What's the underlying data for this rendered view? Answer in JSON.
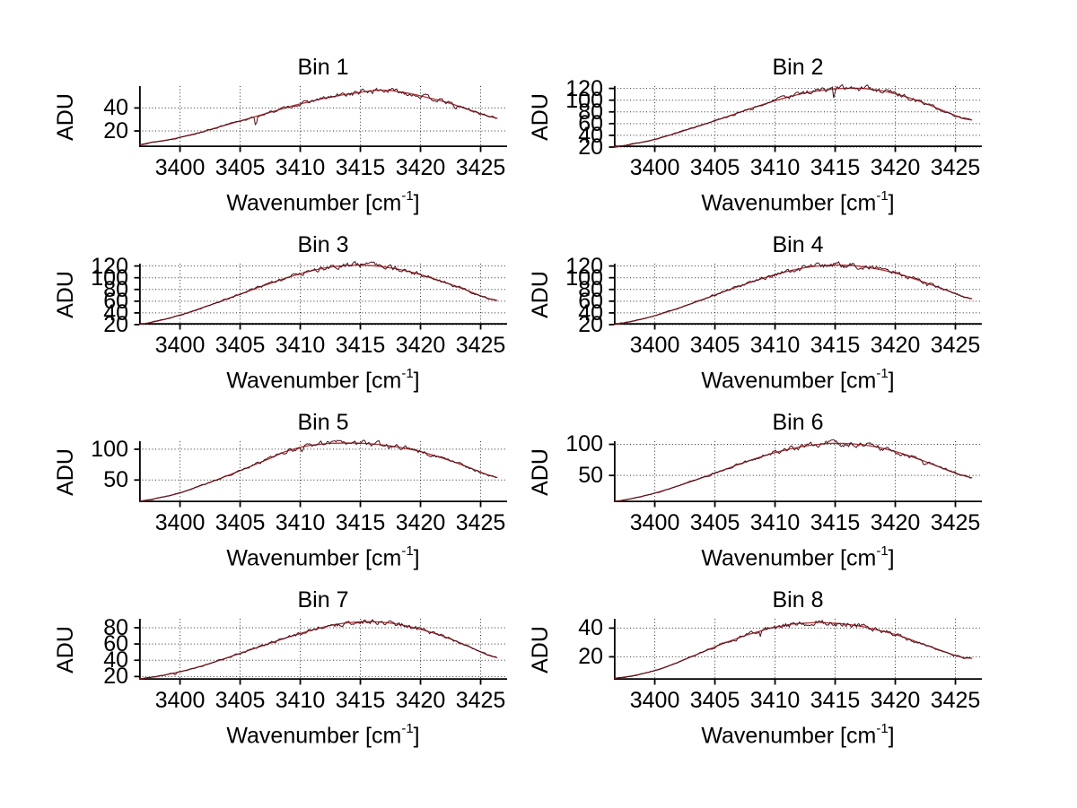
{
  "figure": {
    "background": "#ffffff",
    "ylabel": "ADU",
    "xlabel_base": "Wavenumber [cm",
    "xlabel_sup": "-1",
    "xlabel_close": "]",
    "colors": {
      "axis": "#000000",
      "grid": "#2e2e2e",
      "text": "#000000",
      "fit_line": "#b03232",
      "data_line": "#4d0f1c"
    }
  },
  "chart_data": [
    {
      "type": "line",
      "title": "Bin 1",
      "xlabel": "Wavenumber [cm^-1]",
      "ylabel": "ADU",
      "xlim": [
        3396.6,
        3427.2
      ],
      "xticks": [
        3400,
        3405,
        3410,
        3415,
        3420,
        3425
      ],
      "ylim": [
        6,
        59
      ],
      "yticks": [
        20,
        40
      ],
      "grid": true,
      "legend": "none",
      "x_start": 3396.6,
      "x_step": 1,
      "values": [
        8,
        10,
        11.5,
        13.5,
        16,
        18.5,
        21.5,
        24.5,
        27.5,
        30.5,
        33.5,
        36.5,
        39.5,
        42.5,
        45,
        47.5,
        49.5,
        51.5,
        53,
        54.5,
        55.5,
        55,
        53.5,
        51.5,
        49,
        46.5,
        43.5,
        40,
        36.5,
        33
      ],
      "x_end": 3426.4,
      "y_end": 31,
      "dips": [
        {
          "x": 3406.3,
          "depth": 9,
          "width": 0.1
        },
        {
          "x": 3422.9,
          "depth": 3.5,
          "width": 0.12
        }
      ],
      "noise_amp": 0.9,
      "seed": 13
    },
    {
      "type": "line",
      "title": "Bin 2",
      "xlabel": "Wavenumber [cm^-1]",
      "ylabel": "ADU",
      "xlim": [
        3396.6,
        3427.2
      ],
      "xticks": [
        3400,
        3405,
        3410,
        3415,
        3420,
        3425
      ],
      "ylim": [
        20,
        124
      ],
      "yticks": [
        20,
        40,
        60,
        80,
        100,
        120
      ],
      "grid": true,
      "legend": "none",
      "x_start": 3396.6,
      "x_step": 1,
      "values": [
        20,
        23,
        27,
        31,
        36.5,
        42.5,
        49,
        55.5,
        62,
        69,
        76,
        83,
        90,
        96.5,
        102.5,
        108,
        112.5,
        116,
        118.5,
        120,
        120.5,
        119.5,
        117,
        113,
        107.5,
        101,
        93.5,
        85.5,
        77,
        69
      ],
      "x_end": 3426.4,
      "y_end": 66,
      "dips": [
        {
          "x": 3414.9,
          "depth": 21,
          "width": 0.07
        },
        {
          "x": 3406.0,
          "depth": 3,
          "width": 0.1
        }
      ],
      "noise_amp": 1.8,
      "seed": 90
    },
    {
      "type": "line",
      "title": "Bin 3",
      "xlabel": "Wavenumber [cm^-1]",
      "ylabel": "ADU",
      "xlim": [
        3396.6,
        3427.2
      ],
      "xticks": [
        3400,
        3405,
        3410,
        3415,
        3420,
        3425
      ],
      "ylim": [
        20,
        124
      ],
      "yticks": [
        20,
        40,
        60,
        80,
        100,
        120
      ],
      "grid": true,
      "legend": "none",
      "x_start": 3396.6,
      "x_step": 1,
      "values": [
        20,
        24,
        28.5,
        34,
        40,
        47,
        54,
        61.5,
        69,
        76.5,
        84,
        91,
        98,
        104.5,
        110,
        115,
        118.5,
        120.5,
        121.5,
        121,
        119.5,
        116.5,
        112.5,
        107.5,
        101.5,
        95,
        88,
        80.5,
        72.5,
        65
      ],
      "x_end": 3426.4,
      "y_end": 61,
      "dips": [
        {
          "x": 3409.7,
          "depth": 4,
          "width": 0.1
        }
      ],
      "noise_amp": 1.8,
      "seed": 167
    },
    {
      "type": "line",
      "title": "Bin 4",
      "xlabel": "Wavenumber [cm^-1]",
      "ylabel": "ADU",
      "xlim": [
        3396.6,
        3427.2
      ],
      "xticks": [
        3400,
        3405,
        3410,
        3415,
        3420,
        3425
      ],
      "ylim": [
        20,
        124
      ],
      "yticks": [
        20,
        40,
        60,
        80,
        100,
        120
      ],
      "grid": true,
      "legend": "none",
      "x_start": 3396.6,
      "x_step": 1,
      "values": [
        20,
        23.5,
        28,
        33,
        39,
        45.5,
        52.5,
        60,
        67.5,
        75,
        82.5,
        89.5,
        96.5,
        103,
        108.5,
        113.5,
        117.5,
        120,
        121.5,
        121.5,
        120.5,
        118,
        114.5,
        110,
        104.5,
        98,
        91,
        83.5,
        76,
        68
      ],
      "x_end": 3426.4,
      "y_end": 64,
      "dips": [
        {
          "x": 3422.6,
          "depth": 4,
          "width": 0.1
        }
      ],
      "noise_amp": 1.8,
      "seed": 244
    },
    {
      "type": "line",
      "title": "Bin 5",
      "xlabel": "Wavenumber [cm^-1]",
      "ylabel": "ADU",
      "xlim": [
        3396.6,
        3427.2
      ],
      "xticks": [
        3400,
        3405,
        3410,
        3415,
        3420,
        3425
      ],
      "ylim": [
        14,
        113
      ],
      "yticks": [
        50,
        100
      ],
      "grid": true,
      "legend": "none",
      "x_start": 3396.6,
      "x_step": 1,
      "values": [
        15,
        18.5,
        22.5,
        27,
        33,
        40,
        47,
        54.5,
        62,
        70,
        78,
        86,
        95,
        101,
        105.5,
        108,
        109.5,
        110,
        110,
        109,
        107.5,
        105,
        102,
        98,
        93,
        87,
        80.5,
        73.5,
        66,
        58.5
      ],
      "x_end": 3426.4,
      "y_end": 54,
      "dips": [
        {
          "x": 3410.2,
          "depth": 3.5,
          "width": 0.1
        }
      ],
      "noise_amp": 1.7,
      "seed": 321
    },
    {
      "type": "line",
      "title": "Bin 6",
      "xlabel": "Wavenumber [cm^-1]",
      "ylabel": "ADU",
      "xlim": [
        3396.6,
        3427.2
      ],
      "xticks": [
        3400,
        3405,
        3410,
        3415,
        3420,
        3425
      ],
      "ylim": [
        7,
        105
      ],
      "yticks": [
        50,
        100
      ],
      "grid": true,
      "legend": "none",
      "x_start": 3396.6,
      "x_step": 1,
      "values": [
        8,
        11,
        15,
        19.5,
        25,
        31,
        37.5,
        44,
        51,
        58,
        65,
        72,
        78.5,
        84.5,
        89.5,
        94,
        97.5,
        100,
        101.5,
        101.5,
        100.5,
        98.5,
        95,
        90.5,
        85,
        78.5,
        71.5,
        64,
        56.5,
        50
      ],
      "x_end": 3426.4,
      "y_end": 46,
      "dips": [
        {
          "x": 3422.4,
          "depth": 5,
          "width": 0.12
        }
      ],
      "noise_amp": 1.7,
      "seed": 398
    },
    {
      "type": "line",
      "title": "Bin 7",
      "xlabel": "Wavenumber [cm^-1]",
      "ylabel": "ADU",
      "xlim": [
        3396.6,
        3427.2
      ],
      "xticks": [
        3400,
        3405,
        3410,
        3415,
        3420,
        3425
      ],
      "ylim": [
        16,
        91
      ],
      "yticks": [
        20,
        40,
        60,
        80
      ],
      "grid": true,
      "legend": "none",
      "x_start": 3396.6,
      "x_step": 1,
      "values": [
        17,
        19,
        21.5,
        24.5,
        28,
        32,
        36.5,
        41.5,
        46.5,
        51.5,
        56.5,
        61.5,
        66.5,
        71,
        75.5,
        79.5,
        83,
        85.5,
        87,
        87.5,
        87,
        85.5,
        83,
        79.5,
        75.5,
        71,
        65.5,
        59.5,
        53,
        46.5
      ],
      "x_end": 3426.4,
      "y_end": 43,
      "dips": [
        {
          "x": 3399.6,
          "depth": 3,
          "width": 0.08
        }
      ],
      "noise_amp": 1.3,
      "seed": 475
    },
    {
      "type": "line",
      "title": "Bin 8",
      "xlabel": "Wavenumber [cm^-1]",
      "ylabel": "ADU",
      "xlim": [
        3396.6,
        3427.2
      ],
      "xticks": [
        3400,
        3405,
        3410,
        3415,
        3420,
        3425
      ],
      "ylim": [
        4,
        46.5
      ],
      "yticks": [
        20,
        40
      ],
      "grid": true,
      "legend": "none",
      "x_start": 3396.6,
      "x_step": 1,
      "values": [
        5,
        6,
        7.5,
        9.5,
        12,
        15,
        18.5,
        22,
        25.5,
        29,
        32,
        35,
        37.5,
        40,
        41.5,
        43,
        43.5,
        44,
        43.5,
        43,
        42,
        40.5,
        38.5,
        36.5,
        34,
        31,
        28,
        25,
        22,
        19.5
      ],
      "x_end": 3426.4,
      "y_end": 19,
      "dips": [
        {
          "x": 3408.8,
          "depth": 3.5,
          "width": 0.08
        }
      ],
      "noise_amp": 0.75,
      "seed": 552
    }
  ]
}
